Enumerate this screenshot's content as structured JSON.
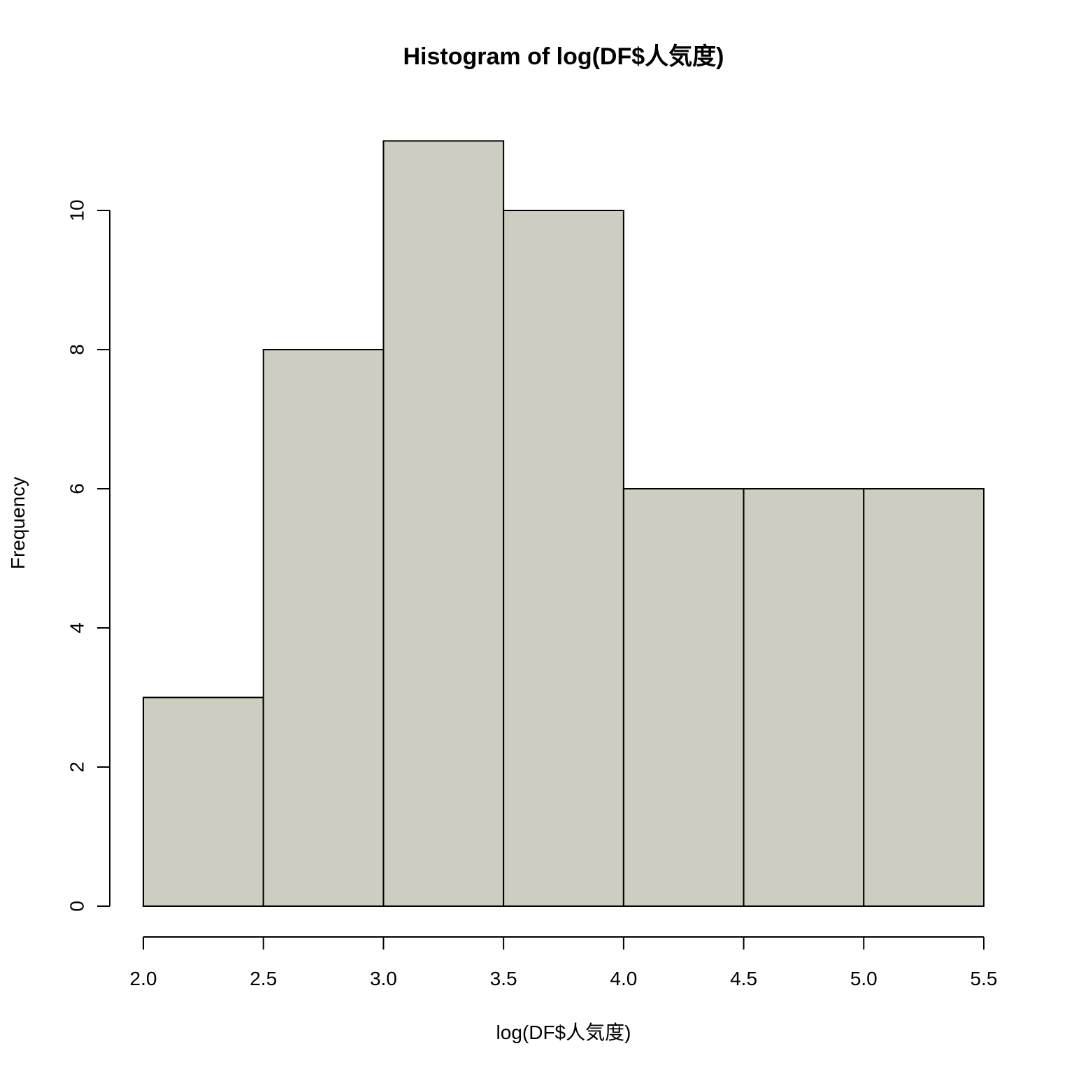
{
  "chart_data": {
    "type": "bar",
    "title": "Histogram of log(DF$人気度)",
    "xlabel": "log(DF$人気度)",
    "ylabel": "Frequency",
    "bins": [
      {
        "start": 2.0,
        "end": 2.5,
        "count": 3
      },
      {
        "start": 2.5,
        "end": 3.0,
        "count": 8
      },
      {
        "start": 3.0,
        "end": 3.5,
        "count": 11
      },
      {
        "start": 3.5,
        "end": 4.0,
        "count": 10
      },
      {
        "start": 4.0,
        "end": 4.5,
        "count": 6
      },
      {
        "start": 4.5,
        "end": 5.0,
        "count": 6
      },
      {
        "start": 5.0,
        "end": 5.5,
        "count": 6
      }
    ],
    "x_ticks": [
      "2.0",
      "2.5",
      "3.0",
      "3.5",
      "4.0",
      "4.5",
      "5.0",
      "5.5"
    ],
    "y_ticks": [
      "0",
      "2",
      "4",
      "6",
      "8",
      "10"
    ],
    "xlim": [
      2.0,
      5.5
    ],
    "ylim": [
      0,
      10
    ],
    "bar_color": "#cdcdc1",
    "grid": false,
    "legend": "none"
  }
}
